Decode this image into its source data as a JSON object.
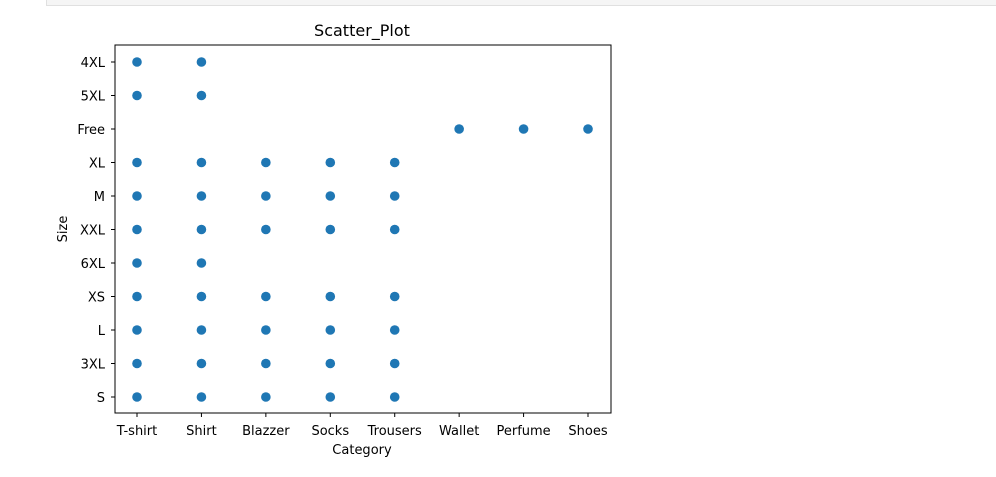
{
  "chart_data": {
    "type": "scatter",
    "title": "Scatter_Plot",
    "xlabel": "Category",
    "ylabel": "Size",
    "categories": [
      "T-shirt",
      "Shirt",
      "Blazzer",
      "Socks",
      "Trousers",
      "Wallet",
      "Perfume",
      "Shoes"
    ],
    "size_levels": [
      "S",
      "3XL",
      "L",
      "XS",
      "6XL",
      "XXL",
      "M",
      "XL",
      "Free",
      "5XL",
      "4XL"
    ],
    "point_color": "#1f77b4",
    "grid": false,
    "points": [
      {
        "x": "T-shirt",
        "y": "4XL"
      },
      {
        "x": "T-shirt",
        "y": "5XL"
      },
      {
        "x": "T-shirt",
        "y": "XL"
      },
      {
        "x": "T-shirt",
        "y": "M"
      },
      {
        "x": "T-shirt",
        "y": "XXL"
      },
      {
        "x": "T-shirt",
        "y": "6XL"
      },
      {
        "x": "T-shirt",
        "y": "XS"
      },
      {
        "x": "T-shirt",
        "y": "L"
      },
      {
        "x": "T-shirt",
        "y": "3XL"
      },
      {
        "x": "T-shirt",
        "y": "S"
      },
      {
        "x": "Shirt",
        "y": "4XL"
      },
      {
        "x": "Shirt",
        "y": "5XL"
      },
      {
        "x": "Shirt",
        "y": "XL"
      },
      {
        "x": "Shirt",
        "y": "M"
      },
      {
        "x": "Shirt",
        "y": "XXL"
      },
      {
        "x": "Shirt",
        "y": "6XL"
      },
      {
        "x": "Shirt",
        "y": "XS"
      },
      {
        "x": "Shirt",
        "y": "L"
      },
      {
        "x": "Shirt",
        "y": "3XL"
      },
      {
        "x": "Shirt",
        "y": "S"
      },
      {
        "x": "Blazzer",
        "y": "XL"
      },
      {
        "x": "Blazzer",
        "y": "M"
      },
      {
        "x": "Blazzer",
        "y": "XXL"
      },
      {
        "x": "Blazzer",
        "y": "XS"
      },
      {
        "x": "Blazzer",
        "y": "L"
      },
      {
        "x": "Blazzer",
        "y": "3XL"
      },
      {
        "x": "Blazzer",
        "y": "S"
      },
      {
        "x": "Socks",
        "y": "XL"
      },
      {
        "x": "Socks",
        "y": "M"
      },
      {
        "x": "Socks",
        "y": "XXL"
      },
      {
        "x": "Socks",
        "y": "XS"
      },
      {
        "x": "Socks",
        "y": "L"
      },
      {
        "x": "Socks",
        "y": "3XL"
      },
      {
        "x": "Socks",
        "y": "S"
      },
      {
        "x": "Trousers",
        "y": "XL"
      },
      {
        "x": "Trousers",
        "y": "M"
      },
      {
        "x": "Trousers",
        "y": "XXL"
      },
      {
        "x": "Trousers",
        "y": "XS"
      },
      {
        "x": "Trousers",
        "y": "L"
      },
      {
        "x": "Trousers",
        "y": "3XL"
      },
      {
        "x": "Trousers",
        "y": "S"
      },
      {
        "x": "Wallet",
        "y": "Free"
      },
      {
        "x": "Perfume",
        "y": "Free"
      },
      {
        "x": "Shoes",
        "y": "Free"
      }
    ]
  }
}
